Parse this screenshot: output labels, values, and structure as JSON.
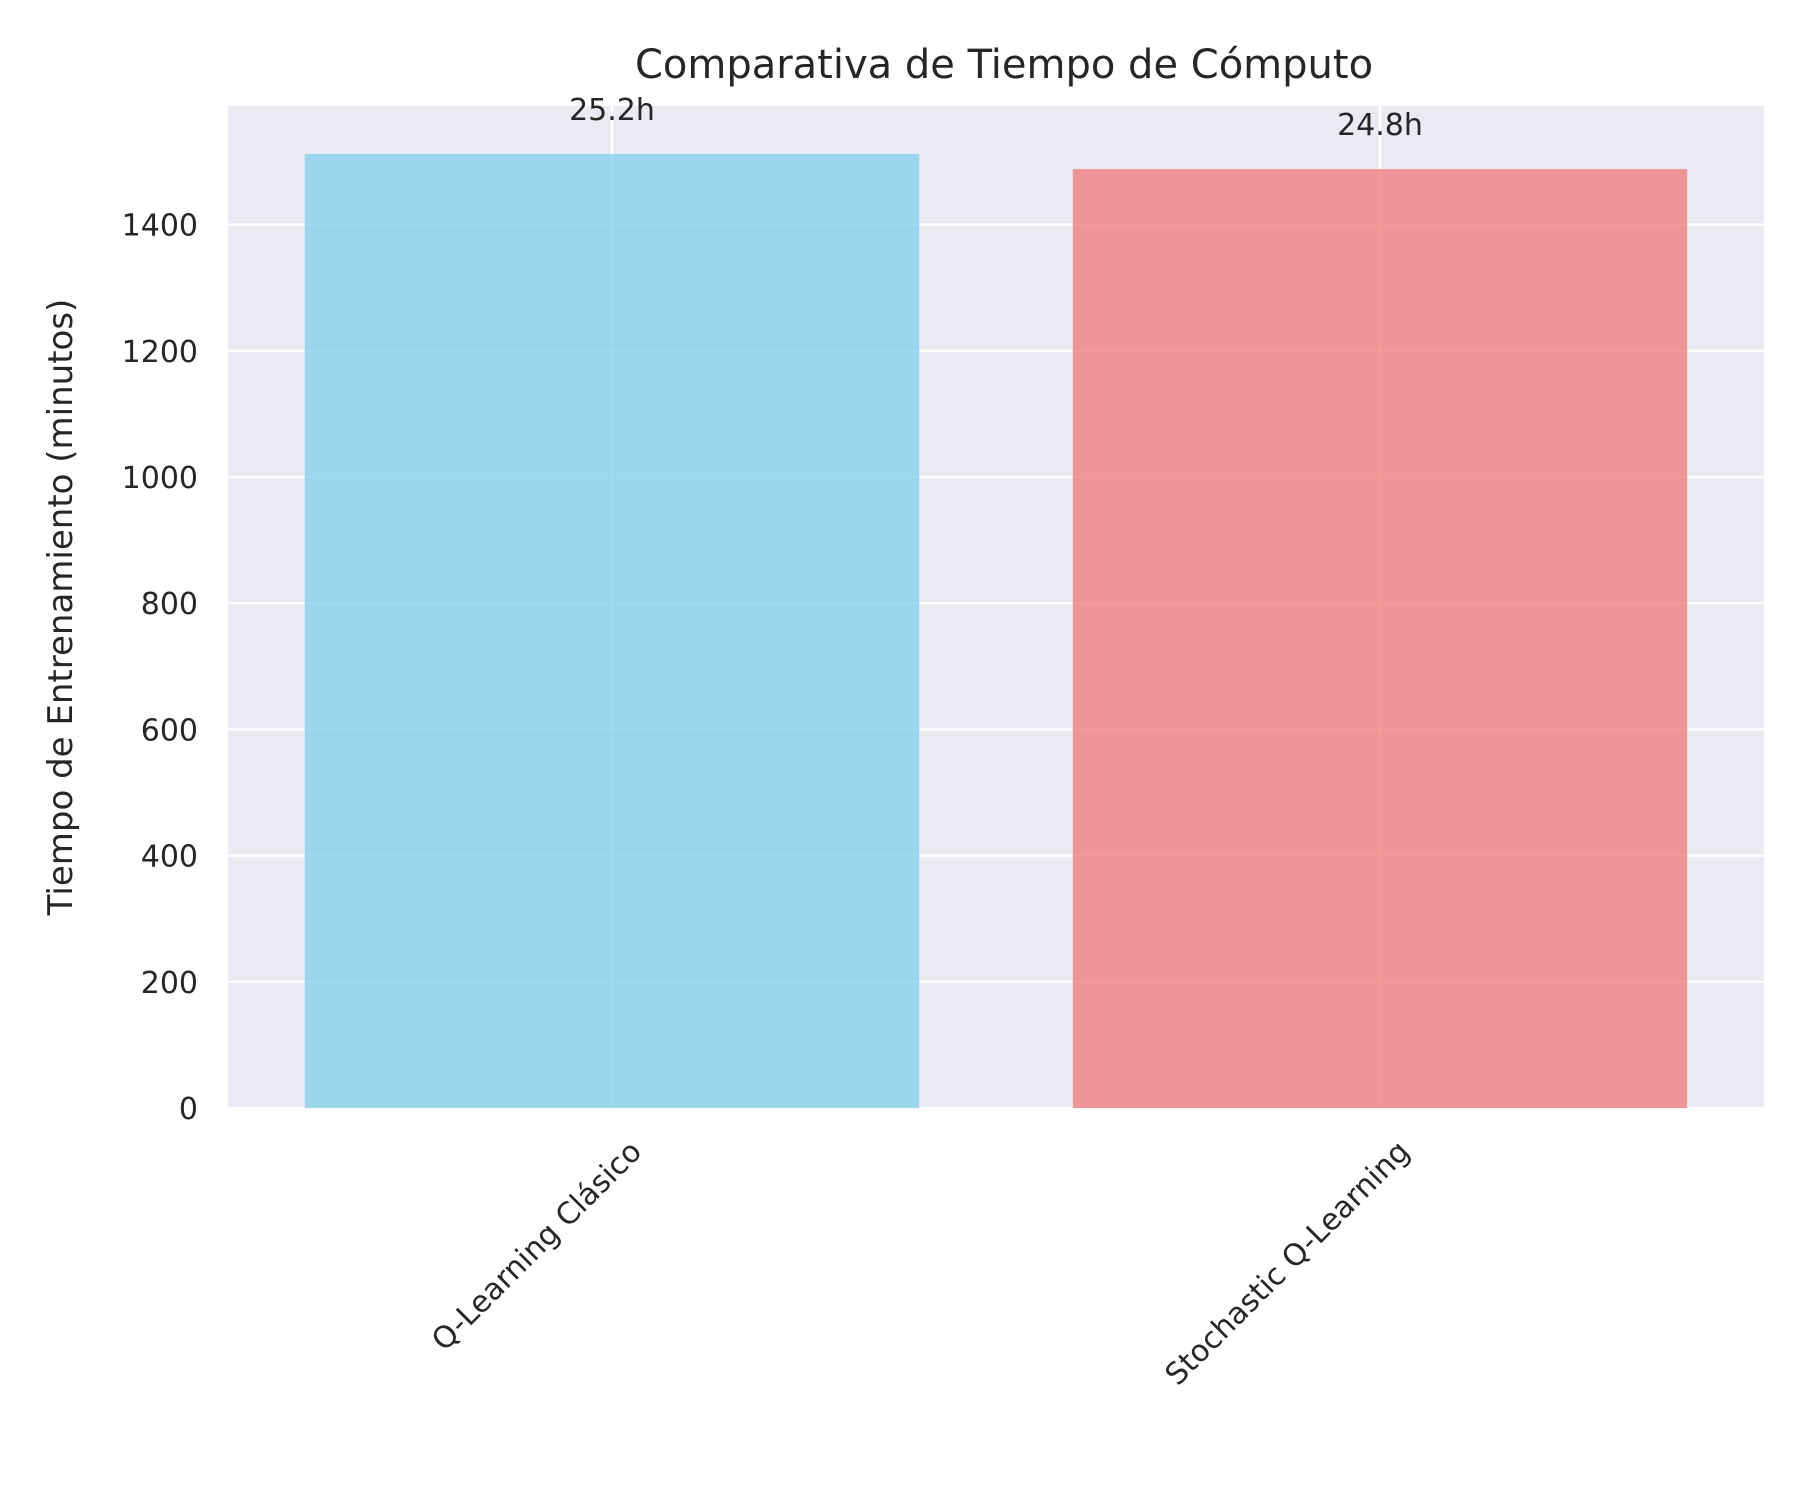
{
  "chart_data": {
    "type": "bar",
    "title": "Comparativa de Tiempo de Cómputo",
    "xlabel": "",
    "ylabel": "Tiempo de Entrenamiento (minutos)",
    "categories": [
      "Q-Learning Clásico",
      "Stochastic Q-Learning"
    ],
    "values": [
      1512,
      1488
    ],
    "bar_labels": [
      "25.2h",
      "24.8h"
    ],
    "colors": [
      "#87CEEB",
      "#F08080"
    ],
    "bar_opacity": 0.8,
    "ylim": [
      0,
      1588
    ],
    "yticks": [
      0,
      200,
      400,
      600,
      800,
      1000,
      1200,
      1400
    ],
    "ytick_labels": [
      "0",
      "200",
      "400",
      "600",
      "800",
      "1000",
      "1200",
      "1400"
    ],
    "grid": true,
    "legend": false,
    "background": "#EAEAF2",
    "xtick_rotation": 45
  }
}
